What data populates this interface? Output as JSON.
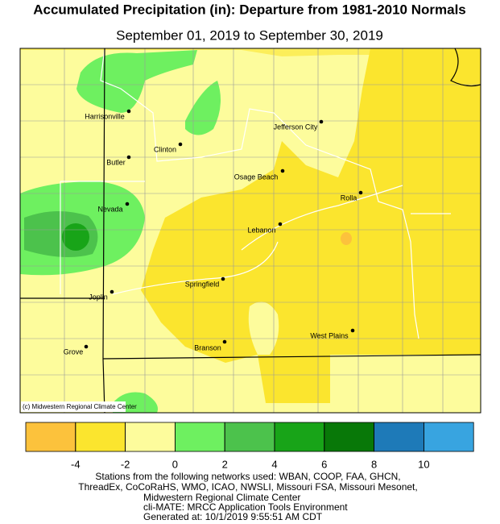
{
  "header": {
    "title": "Accumulated Precipitation (in): Departure from 1981-2010 Normals",
    "subtitle": "September 01, 2019 to September 30, 2019"
  },
  "map": {
    "cities": [
      "Harrisonville",
      "Clinton",
      "Jefferson City",
      "Butler",
      "Osage Beach",
      "Rolla",
      "Nevada",
      "Lebanon",
      "Springfield",
      "Joplin",
      "Branson",
      "West Plains",
      "Grove"
    ],
    "credit": "(c) Midwestern Regional Climate Center"
  },
  "legend": {
    "colors": [
      "#fcc23c",
      "#fbe52e",
      "#fdfc9c",
      "#6ef060",
      "#4cc24c",
      "#18a418",
      "#087808",
      "#1e7ab8",
      "#38a4e0"
    ],
    "ticks": [
      -4,
      -2,
      0,
      2,
      4,
      6,
      8,
      10
    ]
  },
  "footer": {
    "lines": [
      "Stations from the following networks used: WBAN, COOP, FAA, GHCN,",
      "ThreadEx, CoCoRaHS, WMO, ICAO, NWSLI, Missouri FSA, Missouri Mesonet,",
      "Midwestern Regional Climate Center",
      "cli-MATE: MRCC Application Tools Environment",
      "Generated at: 10/1/2019 9:55:51 AM CDT"
    ]
  }
}
